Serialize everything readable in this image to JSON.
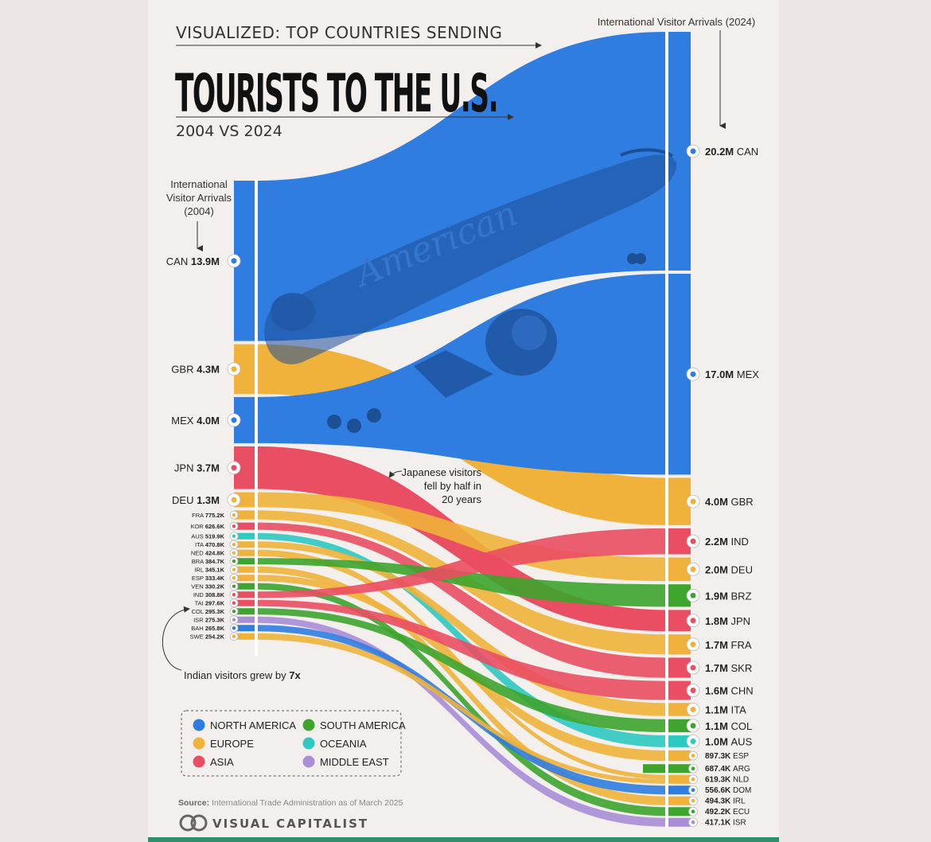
{
  "header": {
    "kicker": "VISUALIZED: TOP COUNTRIES SENDING",
    "title": "TOURISTS TO THE U.S.",
    "subtitle": "2004 VS 2024"
  },
  "axes": {
    "left_label": [
      "International",
      "Visitor Arrivals",
      "(2004)"
    ],
    "right_label": "International Visitor Arrivals (2024)"
  },
  "annotations": {
    "japan": [
      "Japanese visitors",
      "fell by half in",
      "20 years"
    ],
    "india_prefix": "Indian visitors grew by ",
    "india_value": "7x"
  },
  "legend": [
    {
      "name": "NORTH AMERICA",
      "color": "#2f7de1"
    },
    {
      "name": "SOUTH AMERICA",
      "color": "#3da42e"
    },
    {
      "name": "EUROPE",
      "color": "#f0b23a"
    },
    {
      "name": "OCEANIA",
      "color": "#2ec9c0"
    },
    {
      "name": "ASIA",
      "color": "#ea4e62"
    },
    {
      "name": "MIDDLE EAST",
      "color": "#a98dd6"
    }
  ],
  "footer": {
    "source_label": "Source:",
    "source_text": " International Trade Administration as of March 2025",
    "brand": "VISUAL CAPITALIST"
  },
  "chart_data": {
    "type": "sankey",
    "units": "visitors",
    "region_colors": {
      "NORTH AMERICA": "#2f7de1",
      "SOUTH AMERICA": "#3da42e",
      "EUROPE": "#f0b23a",
      "OCEANIA": "#2ec9c0",
      "ASIA": "#ea4e62",
      "MIDDLE EAST": "#a98dd6"
    },
    "left_2004": [
      {
        "code": "CAN",
        "label": "13.9M",
        "value": 13900000,
        "region": "NORTH AMERICA"
      },
      {
        "code": "GBR",
        "label": "4.3M",
        "value": 4300000,
        "region": "EUROPE"
      },
      {
        "code": "MEX",
        "label": "4.0M",
        "value": 4000000,
        "region": "NORTH AMERICA"
      },
      {
        "code": "JPN",
        "label": "3.7M",
        "value": 3700000,
        "region": "ASIA"
      },
      {
        "code": "DEU",
        "label": "1.3M",
        "value": 1300000,
        "region": "EUROPE"
      },
      {
        "code": "FRA",
        "label": "775.2K",
        "value": 775200,
        "region": "EUROPE"
      },
      {
        "code": "KOR",
        "label": "626.6K",
        "value": 626600,
        "region": "ASIA"
      },
      {
        "code": "AUS",
        "label": "519.9K",
        "value": 519900,
        "region": "OCEANIA"
      },
      {
        "code": "ITA",
        "label": "470.8K",
        "value": 470800,
        "region": "EUROPE"
      },
      {
        "code": "NED",
        "label": "424.8K",
        "value": 424800,
        "region": "EUROPE"
      },
      {
        "code": "BRA",
        "label": "384.7K",
        "value": 384700,
        "region": "SOUTH AMERICA"
      },
      {
        "code": "IRL",
        "label": "345.1K",
        "value": 345100,
        "region": "EUROPE"
      },
      {
        "code": "ESP",
        "label": "333.4K",
        "value": 333400,
        "region": "EUROPE"
      },
      {
        "code": "VEN",
        "label": "330.2K",
        "value": 330200,
        "region": "SOUTH AMERICA"
      },
      {
        "code": "IND",
        "label": "308.8K",
        "value": 308800,
        "region": "ASIA"
      },
      {
        "code": "TAI",
        "label": "297.6K",
        "value": 297600,
        "region": "ASIA"
      },
      {
        "code": "COL",
        "label": "295.3K",
        "value": 295300,
        "region": "SOUTH AMERICA"
      },
      {
        "code": "ISR",
        "label": "275.3K",
        "value": 275300,
        "region": "MIDDLE EAST"
      },
      {
        "code": "BAH",
        "label": "265.8K",
        "value": 265800,
        "region": "NORTH AMERICA"
      },
      {
        "code": "SWE",
        "label": "254.2K",
        "value": 254200,
        "region": "EUROPE"
      }
    ],
    "right_2024": [
      {
        "code": "CAN",
        "label": "20.2M",
        "value": 20200000,
        "region": "NORTH AMERICA"
      },
      {
        "code": "MEX",
        "label": "17.0M",
        "value": 17000000,
        "region": "NORTH AMERICA"
      },
      {
        "code": "GBR",
        "label": "4.0M",
        "value": 4000000,
        "region": "EUROPE"
      },
      {
        "code": "IND",
        "label": "2.2M",
        "value": 2200000,
        "region": "ASIA"
      },
      {
        "code": "DEU",
        "label": "2.0M",
        "value": 2000000,
        "region": "EUROPE"
      },
      {
        "code": "BRZ",
        "label": "1.9M",
        "value": 1900000,
        "region": "SOUTH AMERICA"
      },
      {
        "code": "JPN",
        "label": "1.8M",
        "value": 1800000,
        "region": "ASIA"
      },
      {
        "code": "FRA",
        "label": "1.7M",
        "value": 1700000,
        "region": "EUROPE"
      },
      {
        "code": "SKR",
        "label": "1.7M",
        "value": 1700000,
        "region": "ASIA"
      },
      {
        "code": "CHN",
        "label": "1.6M",
        "value": 1600000,
        "region": "ASIA"
      },
      {
        "code": "ITA",
        "label": "1.1M",
        "value": 1100000,
        "region": "EUROPE"
      },
      {
        "code": "COL",
        "label": "1.1M",
        "value": 1100000,
        "region": "SOUTH AMERICA"
      },
      {
        "code": "AUS",
        "label": "1.0M",
        "value": 1000000,
        "region": "OCEANIA"
      },
      {
        "code": "ESP",
        "label": "897.3K",
        "value": 897300,
        "region": "EUROPE"
      },
      {
        "code": "ARG",
        "label": "687.4K",
        "value": 687400,
        "region": "SOUTH AMERICA"
      },
      {
        "code": "NLD",
        "label": "619.3K",
        "value": 619300,
        "region": "EUROPE"
      },
      {
        "code": "DOM",
        "label": "556.6K",
        "value": 556600,
        "region": "NORTH AMERICA"
      },
      {
        "code": "IRL",
        "label": "494.3K",
        "value": 494300,
        "region": "EUROPE"
      },
      {
        "code": "ECU",
        "label": "492.2K",
        "value": 492200,
        "region": "SOUTH AMERICA"
      },
      {
        "code": "ISR",
        "label": "417.1K",
        "value": 417100,
        "region": "MIDDLE EAST"
      }
    ],
    "links": [
      [
        "CAN",
        "CAN"
      ],
      [
        "GBR",
        "GBR"
      ],
      [
        "MEX",
        "MEX"
      ],
      [
        "JPN",
        "JPN"
      ],
      [
        "DEU",
        "DEU"
      ],
      [
        "FRA",
        "FRA"
      ],
      [
        "KOR",
        "SKR"
      ],
      [
        "AUS",
        "AUS"
      ],
      [
        "ITA",
        "ITA"
      ],
      [
        "NED",
        "NLD"
      ],
      [
        "BRA",
        "BRZ"
      ],
      [
        "IRL",
        "IRL"
      ],
      [
        "ESP",
        "ESP"
      ],
      [
        "VEN",
        "ECU"
      ],
      [
        "IND",
        "IND"
      ],
      [
        "TAI",
        "CHN"
      ],
      [
        "COL",
        "COL"
      ],
      [
        "ISR",
        "ISR"
      ],
      [
        "BAH",
        "DOM"
      ],
      [
        "SWE",
        "NLD"
      ]
    ]
  }
}
